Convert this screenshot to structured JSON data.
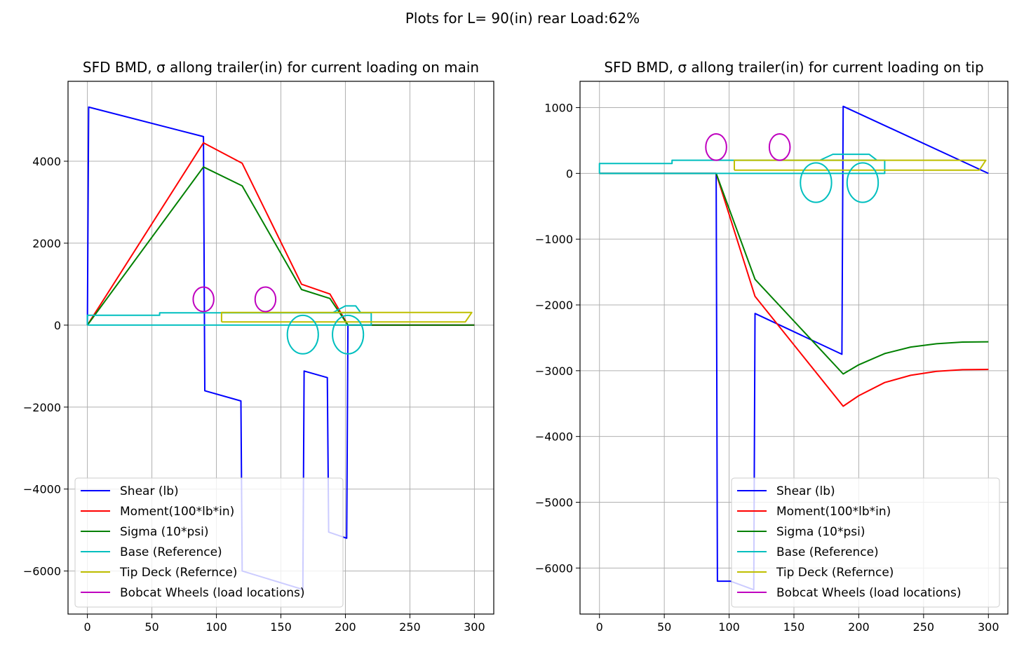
{
  "figure": {
    "suptitle": "Plots for L= 90(in) rear Load:62%"
  },
  "colors": {
    "shear": "#0000ff",
    "moment": "#ff0000",
    "sigma": "#008000",
    "base": "#00bfbf",
    "tip": "#bfbf00",
    "wheels": "#bf00bf",
    "grid": "#b0b0b0"
  },
  "chart_data": [
    {
      "type": "line",
      "title": "SFD BMD, σ allong trailer(in) for current loading on main",
      "xlim": [
        -15,
        315
      ],
      "ylim": [
        -7050,
        5950
      ],
      "xticks": [
        0,
        50,
        100,
        150,
        200,
        250,
        300
      ],
      "yticks": [
        -6000,
        -4000,
        -2000,
        0,
        2000,
        4000
      ],
      "ytick_labels": [
        "−6000",
        "−4000",
        "−2000",
        "0",
        "2000",
        "4000"
      ],
      "grid": true,
      "legend_placement": "lower-left",
      "legend": [
        "Shear (lb)",
        "Moment(100*lb*in)",
        "Sigma (10*psi)",
        "Base (Reference)",
        "Tip Deck (Refernce)",
        "Bobcat Wheels (load locations)"
      ],
      "series": [
        {
          "name": "Shear (lb)",
          "key": "shear",
          "x": [
            0,
            1,
            90,
            91,
            119,
            120,
            167,
            168,
            186,
            187,
            201,
            202,
            300
          ],
          "y": [
            0,
            5320,
            4600,
            -1600,
            -1850,
            -6000,
            -6450,
            -1120,
            -1280,
            -5050,
            -5200,
            0,
            0
          ]
        },
        {
          "name": "Moment(100*lb*in)",
          "key": "moment",
          "x": [
            0,
            90,
            120,
            166,
            188,
            202,
            300
          ],
          "y": [
            0,
            4450,
            3950,
            1000,
            760,
            0,
            0
          ]
        },
        {
          "name": "Sigma (10*psi)",
          "key": "sigma",
          "x": [
            0,
            90,
            120,
            166,
            188,
            202,
            300
          ],
          "y": [
            0,
            3860,
            3400,
            870,
            650,
            0,
            0
          ]
        },
        {
          "name": "Base (Reference)",
          "key": "base",
          "x": [
            0,
            0,
            56,
            56,
            220,
            220,
            0,
            null,
            110,
            110,
            190,
            200,
            208,
            212,
            120,
            null,
            183,
            183
          ],
          "y": [
            0,
            240,
            240,
            300,
            300,
            0,
            0,
            null,
            300,
            300,
            300,
            470,
            470,
            300,
            300,
            null,
            300,
            300
          ]
        },
        {
          "name": "Tip Deck (Refernce)",
          "key": "tip",
          "x": [
            104,
            104,
            298,
            293,
            104
          ],
          "y": [
            80,
            310,
            310,
            80,
            80
          ]
        },
        {
          "name": "Bobcat Wheels (load locations)",
          "key": "wheels",
          "ellipses": [
            {
              "cx": 90,
              "cy": 630,
              "rx": 8,
              "ry": 300
            },
            {
              "cx": 138,
              "cy": 630,
              "rx": 8,
              "ry": 300
            }
          ]
        },
        {
          "name": "",
          "key": "base",
          "ellipses": [
            {
              "cx": 167,
              "cy": -230,
              "rx": 12,
              "ry": 470
            },
            {
              "cx": 202,
              "cy": -230,
              "rx": 12,
              "ry": 470
            }
          ]
        }
      ]
    },
    {
      "type": "line",
      "title": "SFD BMD, σ allong trailer(in) for current loading on tip",
      "xlim": [
        -15,
        315
      ],
      "ylim": [
        -6700,
        1400
      ],
      "xticks": [
        0,
        50,
        100,
        150,
        200,
        250,
        300
      ],
      "yticks": [
        -6000,
        -5000,
        -4000,
        -3000,
        -2000,
        -1000,
        0,
        1000
      ],
      "ytick_labels": [
        "−6000",
        "−5000",
        "−4000",
        "−3000",
        "−2000",
        "−1000",
        "0",
        "1000"
      ],
      "grid": true,
      "legend_placement": "lower-right",
      "legend": [
        "Shear (lb)",
        "Moment(100*lb*in)",
        "Sigma (10*psi)",
        "Base (Reference)",
        "Tip Deck (Refernce)",
        "Bobcat Wheels (load locations)"
      ],
      "series": [
        {
          "name": "Shear (lb)",
          "key": "shear",
          "x": [
            0,
            90,
            91,
            100,
            101,
            119,
            120,
            187,
            188,
            300
          ],
          "y": [
            0,
            0,
            -6200,
            -6200,
            -6200,
            -6330,
            -2130,
            -2750,
            1020,
            0
          ]
        },
        {
          "name": "Moment(100*lb*in)",
          "key": "moment",
          "x": [
            0,
            90,
            120,
            188,
            200,
            220,
            240,
            260,
            280,
            300
          ],
          "y": [
            0,
            0,
            -1870,
            -3540,
            -3380,
            -3180,
            -3070,
            -3010,
            -2985,
            -2980
          ]
        },
        {
          "name": "Sigma (10*psi)",
          "key": "sigma",
          "x": [
            0,
            90,
            120,
            188,
            200,
            220,
            240,
            260,
            280,
            300
          ],
          "y": [
            0,
            0,
            -1610,
            -3050,
            -2910,
            -2740,
            -2640,
            -2590,
            -2565,
            -2560
          ]
        },
        {
          "name": "Base (Reference)",
          "key": "base",
          "x": [
            0,
            0,
            56,
            56,
            220,
            220,
            0,
            null,
            110,
            110,
            170,
            180,
            208,
            214,
            120,
            null,
            183,
            183
          ],
          "y": [
            0,
            150,
            150,
            200,
            200,
            0,
            0,
            null,
            200,
            200,
            200,
            290,
            290,
            200,
            200,
            null,
            200,
            200
          ]
        },
        {
          "name": "Tip Deck (Refernce)",
          "key": "tip",
          "x": [
            104,
            104,
            298,
            293,
            104
          ],
          "y": [
            50,
            200,
            200,
            50,
            50
          ]
        },
        {
          "name": "Bobcat Wheels (load locations)",
          "key": "wheels",
          "ellipses": [
            {
              "cx": 90,
              "cy": 400,
              "rx": 8,
              "ry": 200
            },
            {
              "cx": 139,
              "cy": 400,
              "rx": 8,
              "ry": 200
            }
          ]
        },
        {
          "name": "",
          "key": "base",
          "ellipses": [
            {
              "cx": 167,
              "cy": -140,
              "rx": 12,
              "ry": 300
            },
            {
              "cx": 203,
              "cy": -140,
              "rx": 12,
              "ry": 300
            }
          ]
        }
      ]
    }
  ]
}
